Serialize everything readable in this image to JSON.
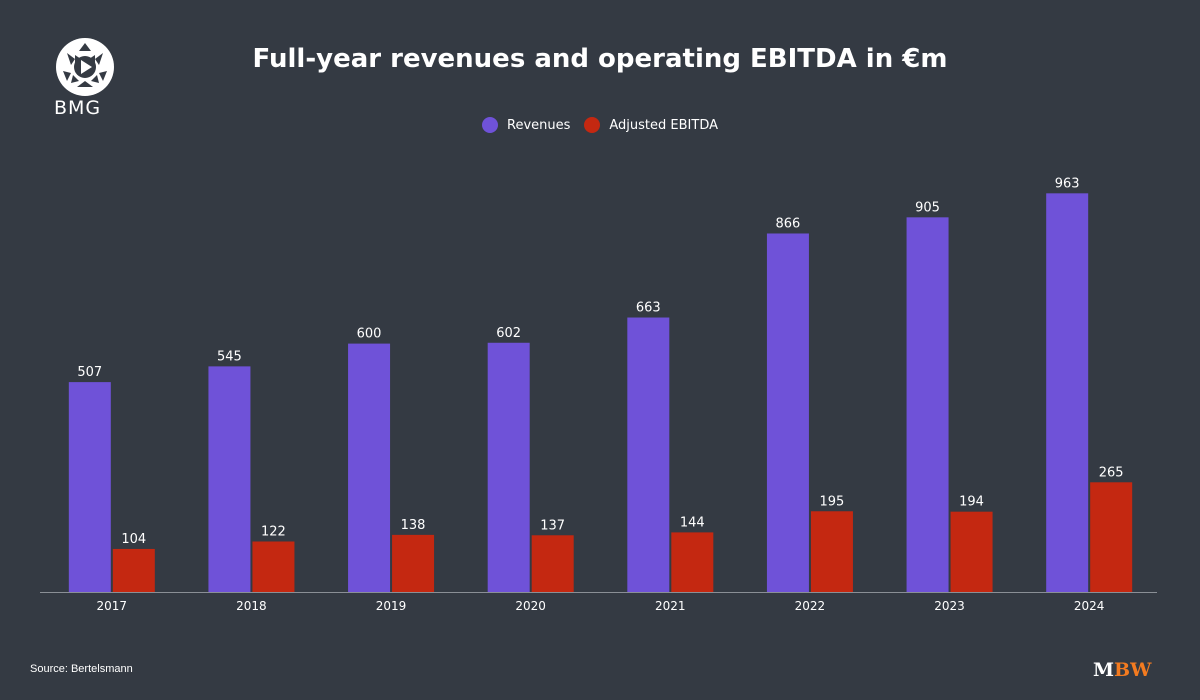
{
  "brand": {
    "logo_text": "BMG",
    "watermark": "MBW",
    "watermark_colors": [
      "#ffffff",
      "#f47b20"
    ]
  },
  "source": "Source: Bertelsmann",
  "chart_data": {
    "type": "bar",
    "title": "Full-year revenues and operating EBITDA in €m",
    "categories": [
      "2017",
      "2018",
      "2019",
      "2020",
      "2021",
      "2022",
      "2023",
      "2024"
    ],
    "series": [
      {
        "name": "Revenues",
        "color": "#6f52d8",
        "values": [
          507,
          545,
          600,
          602,
          663,
          866,
          905,
          963
        ]
      },
      {
        "name": "Adjusted EBITDA",
        "color": "#c42811",
        "values": [
          104,
          122,
          138,
          137,
          144,
          195,
          194,
          265
        ]
      }
    ],
    "ylim": [
      0,
      1000
    ],
    "grid": false,
    "legend": "top-center",
    "data_labels": true
  }
}
